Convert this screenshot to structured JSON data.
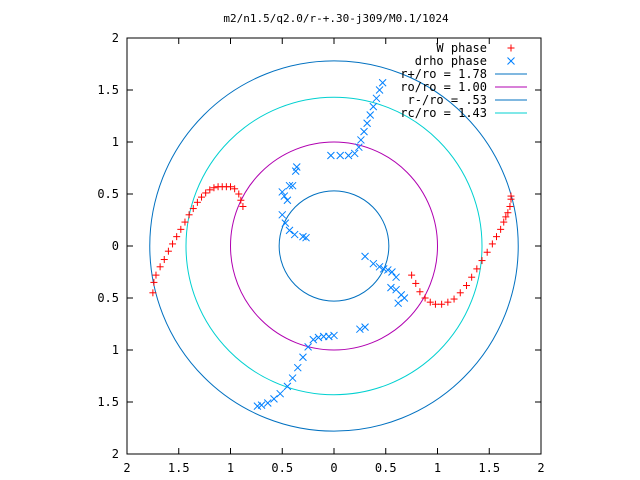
{
  "chart_data": {
    "type": "scatter",
    "title": "m2/n1.5/q2.0/r-+.30-j309/M0.1/1024",
    "xlabel": "",
    "ylabel": "",
    "xlim": [
      -2,
      2
    ],
    "ylim": [
      -2,
      2
    ],
    "x_ticks": [
      "2",
      "1.5",
      "1",
      "0.5",
      "0",
      "0.5",
      "1",
      "1.5",
      "2"
    ],
    "y_ticks": [
      "2",
      "1.5",
      "1",
      "0.5",
      "0",
      "0.5",
      "1",
      "1.5",
      "2"
    ],
    "grid": false,
    "legend_position": "top-right",
    "legend": [
      {
        "label": "W phase",
        "color": "#ff0000",
        "marker": "plus"
      },
      {
        "label": "drho phase",
        "color": "#0080ff",
        "marker": "cross"
      },
      {
        "label": "r+/ro = 1.78",
        "color": "#0070c0",
        "marker": "line"
      },
      {
        "label": "ro/ro = 1.00",
        "color": "#b000b0",
        "marker": "line"
      },
      {
        "label": "r-/ro = .53",
        "color": "#0070c0",
        "marker": "line"
      },
      {
        "label": "rc/ro = 1.43",
        "color": "#00d0d0",
        "marker": "line"
      }
    ],
    "circles": [
      {
        "name": "r+/ro",
        "radius": 1.78,
        "color": "#0070c0"
      },
      {
        "name": "ro/ro",
        "radius": 1.0,
        "color": "#b000b0"
      },
      {
        "name": "r-/ro",
        "radius": 0.53,
        "color": "#0070c0"
      },
      {
        "name": "rc/ro",
        "radius": 1.43,
        "color": "#00d0d0"
      }
    ],
    "series": [
      {
        "name": "W phase",
        "color": "#ff0000",
        "marker": "plus",
        "points": [
          [
            -1.75,
            -0.45
          ],
          [
            -1.74,
            -0.35
          ],
          [
            -1.72,
            -0.28
          ],
          [
            -1.68,
            -0.2
          ],
          [
            -1.64,
            -0.13
          ],
          [
            -1.6,
            -0.05
          ],
          [
            -1.56,
            0.02
          ],
          [
            -1.52,
            0.09
          ],
          [
            -1.48,
            0.16
          ],
          [
            -1.44,
            0.23
          ],
          [
            -1.4,
            0.3
          ],
          [
            -1.36,
            0.36
          ],
          [
            -1.32,
            0.42
          ],
          [
            -1.28,
            0.47
          ],
          [
            -1.24,
            0.51
          ],
          [
            -1.2,
            0.54
          ],
          [
            -1.16,
            0.56
          ],
          [
            -1.12,
            0.57
          ],
          [
            -1.08,
            0.57
          ],
          [
            -1.04,
            0.57
          ],
          [
            -1.0,
            0.57
          ],
          [
            -0.96,
            0.55
          ],
          [
            -0.92,
            0.5
          ],
          [
            -0.9,
            0.44
          ],
          [
            -0.88,
            0.38
          ],
          [
            0.75,
            -0.28
          ],
          [
            0.79,
            -0.36
          ],
          [
            0.83,
            -0.44
          ],
          [
            0.88,
            -0.5
          ],
          [
            0.93,
            -0.54
          ],
          [
            0.98,
            -0.56
          ],
          [
            1.04,
            -0.56
          ],
          [
            1.1,
            -0.54
          ],
          [
            1.16,
            -0.51
          ],
          [
            1.22,
            -0.45
          ],
          [
            1.28,
            -0.38
          ],
          [
            1.33,
            -0.3
          ],
          [
            1.38,
            -0.22
          ],
          [
            1.43,
            -0.14
          ],
          [
            1.48,
            -0.06
          ],
          [
            1.53,
            0.02
          ],
          [
            1.57,
            0.09
          ],
          [
            1.61,
            0.16
          ],
          [
            1.64,
            0.23
          ],
          [
            1.66,
            0.28
          ],
          [
            1.68,
            0.32
          ],
          [
            1.7,
            0.38
          ],
          [
            1.71,
            0.45
          ],
          [
            1.71,
            0.48
          ]
        ]
      },
      {
        "name": "drho phase",
        "color": "#0080ff",
        "marker": "cross",
        "points": [
          [
            0.47,
            1.57
          ],
          [
            0.44,
            1.5
          ],
          [
            0.41,
            1.42
          ],
          [
            0.38,
            1.34
          ],
          [
            0.35,
            1.26
          ],
          [
            0.32,
            1.18
          ],
          [
            0.29,
            1.1
          ],
          [
            0.26,
            1.02
          ],
          [
            0.24,
            0.95
          ],
          [
            0.2,
            0.89
          ],
          [
            0.14,
            0.87
          ],
          [
            0.06,
            0.87
          ],
          [
            -0.03,
            0.87
          ],
          [
            -0.36,
            0.76
          ],
          [
            -0.37,
            0.72
          ],
          [
            -0.45,
            0.44
          ],
          [
            -0.48,
            0.48
          ],
          [
            -0.5,
            0.52
          ],
          [
            -0.43,
            0.58
          ],
          [
            -0.4,
            0.58
          ],
          [
            -0.5,
            0.3
          ],
          [
            -0.47,
            0.22
          ],
          [
            -0.43,
            0.15
          ],
          [
            -0.38,
            0.11
          ],
          [
            -0.3,
            0.09
          ],
          [
            -0.27,
            0.08
          ],
          [
            0.3,
            -0.1
          ],
          [
            0.38,
            -0.17
          ],
          [
            0.44,
            -0.2
          ],
          [
            0.48,
            -0.22
          ],
          [
            0.52,
            -0.23
          ],
          [
            0.56,
            -0.25
          ],
          [
            0.6,
            -0.3
          ],
          [
            0.55,
            -0.4
          ],
          [
            0.6,
            -0.42
          ],
          [
            0.65,
            -0.47
          ],
          [
            0.68,
            -0.5
          ],
          [
            0.62,
            -0.55
          ],
          [
            0.3,
            -0.78
          ],
          [
            0.25,
            -0.8
          ],
          [
            0.0,
            -0.86
          ],
          [
            -0.05,
            -0.87
          ],
          [
            -0.1,
            -0.87
          ],
          [
            -0.15,
            -0.88
          ],
          [
            -0.2,
            -0.9
          ],
          [
            -0.25,
            -0.97
          ],
          [
            -0.3,
            -1.07
          ],
          [
            -0.35,
            -1.17
          ],
          [
            -0.4,
            -1.27
          ],
          [
            -0.45,
            -1.35
          ],
          [
            -0.52,
            -1.42
          ],
          [
            -0.58,
            -1.47
          ],
          [
            -0.64,
            -1.51
          ],
          [
            -0.7,
            -1.53
          ],
          [
            -0.74,
            -1.54
          ]
        ]
      }
    ]
  }
}
